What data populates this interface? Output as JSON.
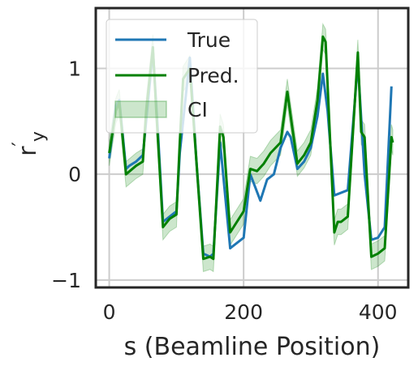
{
  "chart_data": {
    "type": "line",
    "xlabel": "s (Beamline Position)",
    "ylabel_main": "r",
    "ylabel_prime": "′",
    "ylabel_sub": "y",
    "xlim": [
      -20,
      445
    ],
    "ylim": [
      -1.07,
      1.57
    ],
    "xticks": [
      0,
      200,
      400
    ],
    "xtick_labels": [
      "0",
      "200",
      "400"
    ],
    "yticks": [
      -1,
      0,
      1
    ],
    "ytick_labels": [
      "−1",
      "0",
      "1"
    ],
    "grid": true,
    "legend_position": "upper-left",
    "colors": {
      "true": "#1f77b4",
      "pred": "#008000",
      "ci": "#008000",
      "grid": "#cccccc",
      "frame": "#262626"
    },
    "series": [
      {
        "name": "True",
        "x": [
          0,
          5,
          10,
          15,
          25,
          30,
          40,
          50,
          55,
          65,
          72,
          80,
          90,
          100,
          105,
          120,
          130,
          140,
          150,
          155,
          165,
          180,
          200,
          210,
          225,
          235,
          245,
          255,
          265,
          270,
          280,
          290,
          300,
          310,
          318,
          325,
          335,
          355,
          370,
          380,
          390,
          400,
          410,
          420
        ],
        "y": [
          0.15,
          0.4,
          0.65,
          0.7,
          0.05,
          0.08,
          0.12,
          0.18,
          0.5,
          1.17,
          0.45,
          -0.45,
          -0.4,
          -0.35,
          0.2,
          1.1,
          0.1,
          -0.75,
          -0.78,
          -0.75,
          0.3,
          -0.7,
          -0.6,
          0.0,
          -0.25,
          -0.05,
          0.0,
          0.25,
          0.4,
          0.35,
          0.05,
          0.12,
          0.25,
          0.55,
          0.95,
          0.6,
          -0.2,
          -0.15,
          1.05,
          0.0,
          -0.62,
          -0.6,
          -0.5,
          0.83
        ],
        "label": "True"
      },
      {
        "name": "Pred.",
        "x": [
          0,
          10,
          15,
          25,
          40,
          50,
          55,
          65,
          70,
          80,
          90,
          100,
          105,
          110,
          120,
          130,
          140,
          150,
          155,
          165,
          170,
          180,
          200,
          210,
          220,
          230,
          240,
          255,
          265,
          270,
          280,
          290,
          300,
          310,
          318,
          322,
          335,
          340,
          345,
          355,
          370,
          375,
          380,
          390,
          400,
          410,
          420,
          422
        ],
        "y": [
          0.2,
          0.6,
          0.68,
          0.0,
          0.08,
          0.12,
          0.6,
          1.2,
          0.6,
          -0.5,
          -0.42,
          -0.38,
          0.3,
          0.9,
          1.0,
          0.1,
          -0.8,
          -0.78,
          -0.8,
          0.45,
          0.35,
          -0.55,
          -0.35,
          0.05,
          0.03,
          0.1,
          0.2,
          0.3,
          0.78,
          0.55,
          0.1,
          0.18,
          0.3,
          0.7,
          1.3,
          1.25,
          -0.55,
          -0.45,
          -0.45,
          -0.4,
          1.15,
          0.4,
          0.35,
          -0.78,
          -0.75,
          -0.7,
          0.35,
          0.3
        ],
        "label": "Pred."
      }
    ],
    "ci": {
      "name": "CI",
      "label": "CI",
      "halfwidth": 0.12
    }
  }
}
